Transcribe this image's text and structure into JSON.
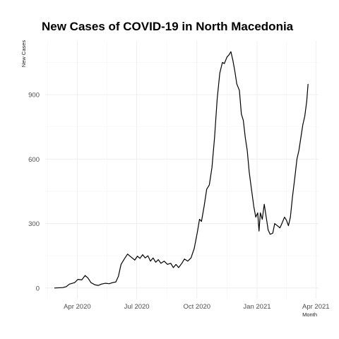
{
  "chart_data": {
    "type": "line",
    "title": "New Cases of COVID-19 in North Macedonia",
    "xlabel": "Month",
    "ylabel": "New Cases",
    "x_ticks": [
      {
        "date": "2020-04-01",
        "label": "Apr 2020"
      },
      {
        "date": "2020-07-01",
        "label": "Jul 2020"
      },
      {
        "date": "2020-10-01",
        "label": "Oct 2020"
      },
      {
        "date": "2021-01-01",
        "label": "Jan 2021"
      },
      {
        "date": "2021-04-01",
        "label": "Apr 2021"
      }
    ],
    "y_ticks": [
      0,
      300,
      600,
      900
    ],
    "xlim": [
      "2020-02-12",
      "2021-04-05"
    ],
    "ylim": [
      -50,
      1150
    ],
    "grid": true,
    "legend": "none",
    "series": [
      {
        "color": "#000000",
        "points": [
          [
            "2020-02-26",
            0
          ],
          [
            "2020-03-10",
            2
          ],
          [
            "2020-03-15",
            6
          ],
          [
            "2020-03-20",
            18
          ],
          [
            "2020-03-28",
            25
          ],
          [
            "2020-04-02",
            40
          ],
          [
            "2020-04-08",
            38
          ],
          [
            "2020-04-13",
            58
          ],
          [
            "2020-04-17",
            48
          ],
          [
            "2020-04-22",
            25
          ],
          [
            "2020-04-28",
            15
          ],
          [
            "2020-05-03",
            12
          ],
          [
            "2020-05-08",
            18
          ],
          [
            "2020-05-14",
            22
          ],
          [
            "2020-05-20",
            20
          ],
          [
            "2020-05-25",
            25
          ],
          [
            "2020-05-30",
            28
          ],
          [
            "2020-06-03",
            55
          ],
          [
            "2020-06-07",
            110
          ],
          [
            "2020-06-12",
            135
          ],
          [
            "2020-06-17",
            158
          ],
          [
            "2020-06-20",
            150
          ],
          [
            "2020-06-24",
            140
          ],
          [
            "2020-06-28",
            130
          ],
          [
            "2020-07-02",
            148
          ],
          [
            "2020-07-06",
            138
          ],
          [
            "2020-07-10",
            155
          ],
          [
            "2020-07-14",
            140
          ],
          [
            "2020-07-18",
            150
          ],
          [
            "2020-07-22",
            125
          ],
          [
            "2020-07-26",
            140
          ],
          [
            "2020-07-30",
            120
          ],
          [
            "2020-08-03",
            132
          ],
          [
            "2020-08-07",
            115
          ],
          [
            "2020-08-12",
            125
          ],
          [
            "2020-08-17",
            110
          ],
          [
            "2020-08-22",
            115
          ],
          [
            "2020-08-26",
            95
          ],
          [
            "2020-08-30",
            110
          ],
          [
            "2020-09-03",
            95
          ],
          [
            "2020-09-08",
            115
          ],
          [
            "2020-09-12",
            135
          ],
          [
            "2020-09-17",
            125
          ],
          [
            "2020-09-22",
            140
          ],
          [
            "2020-09-27",
            185
          ],
          [
            "2020-10-02",
            265
          ],
          [
            "2020-10-05",
            320
          ],
          [
            "2020-10-08",
            310
          ],
          [
            "2020-10-12",
            380
          ],
          [
            "2020-10-16",
            460
          ],
          [
            "2020-10-20",
            480
          ],
          [
            "2020-10-24",
            560
          ],
          [
            "2020-10-28",
            700
          ],
          [
            "2020-11-01",
            880
          ],
          [
            "2020-11-05",
            1000
          ],
          [
            "2020-11-09",
            1050
          ],
          [
            "2020-11-12",
            1045
          ],
          [
            "2020-11-16",
            1075
          ],
          [
            "2020-11-19",
            1085
          ],
          [
            "2020-11-22",
            1100
          ],
          [
            "2020-11-25",
            1060
          ],
          [
            "2020-11-28",
            1010
          ],
          [
            "2020-12-01",
            950
          ],
          [
            "2020-12-05",
            920
          ],
          [
            "2020-12-08",
            810
          ],
          [
            "2020-12-11",
            780
          ],
          [
            "2020-12-14",
            700
          ],
          [
            "2020-12-17",
            640
          ],
          [
            "2020-12-20",
            540
          ],
          [
            "2020-12-23",
            470
          ],
          [
            "2020-12-27",
            380
          ],
          [
            "2020-12-30",
            330
          ],
          [
            "2021-01-02",
            350
          ],
          [
            "2021-01-04",
            265
          ],
          [
            "2021-01-06",
            350
          ],
          [
            "2021-01-09",
            320
          ],
          [
            "2021-01-12",
            390
          ],
          [
            "2021-01-15",
            330
          ],
          [
            "2021-01-18",
            270
          ],
          [
            "2021-01-21",
            250
          ],
          [
            "2021-01-25",
            255
          ],
          [
            "2021-01-28",
            300
          ],
          [
            "2021-02-01",
            290
          ],
          [
            "2021-02-05",
            280
          ],
          [
            "2021-02-08",
            300
          ],
          [
            "2021-02-12",
            330
          ],
          [
            "2021-02-15",
            315
          ],
          [
            "2021-02-18",
            290
          ],
          [
            "2021-02-21",
            330
          ],
          [
            "2021-02-24",
            420
          ],
          [
            "2021-02-28",
            520
          ],
          [
            "2021-03-03",
            600
          ],
          [
            "2021-03-06",
            640
          ],
          [
            "2021-03-09",
            700
          ],
          [
            "2021-03-12",
            760
          ],
          [
            "2021-03-15",
            800
          ],
          [
            "2021-03-18",
            870
          ],
          [
            "2021-03-20",
            950
          ]
        ]
      }
    ]
  }
}
